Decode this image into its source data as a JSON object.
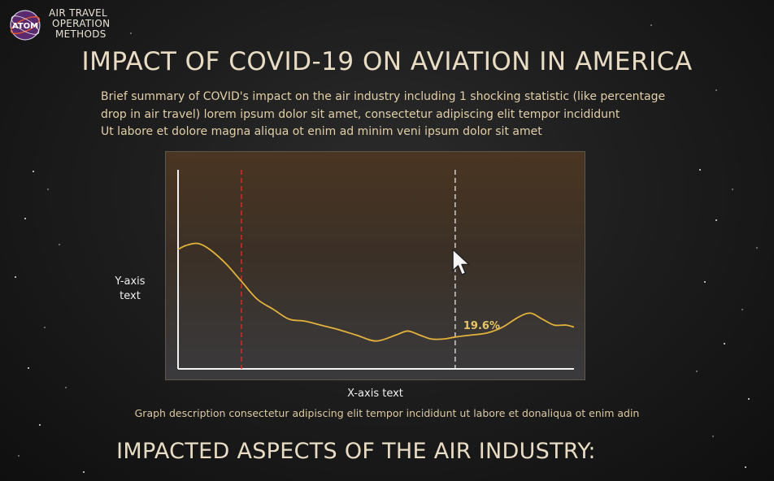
{
  "logo": {
    "badge_text": "ATOM",
    "lines": [
      "AIR TRAVEL",
      "OPERATION",
      "METHODS"
    ]
  },
  "page": {
    "title": "IMPACT OF COVID-19 ON AVIATION IN AMERICA",
    "summary_lines": [
      "Brief summary of COVID's impact on the air industry including 1 shocking statistic (like percentage",
      "drop in air travel) lorem ipsum dolor sit amet, consectetur adipiscing elit tempor incididunt",
      "Ut labore et dolore magna aliqua ot enim ad minim veni ipsum dolor sit amet"
    ],
    "section_title": "IMPACTED ASPECTS OF THE AIR INDUSTRY:"
  },
  "chart_data": {
    "type": "line",
    "title": "",
    "xlabel": "X-axis text",
    "ylabel_lines": [
      "Y-axis",
      "text"
    ],
    "description": "Graph description consectetur adipiscing elit tempor incididunt ut labore et donaliqua ot enim adin",
    "xlim": [
      0,
      100
    ],
    "ylim": [
      0,
      100
    ],
    "grid": false,
    "series": [
      {
        "color": "#e3b23c",
        "x": [
          0,
          2,
          5,
          8,
          12,
          16,
          20,
          24,
          28,
          32,
          36,
          40,
          45,
          50,
          55,
          58,
          61,
          64,
          67,
          70,
          74,
          78,
          82,
          86,
          89,
          92,
          95,
          98,
          100
        ],
        "y": [
          60,
          62,
          63,
          60,
          53,
          44,
          35,
          30,
          25,
          24,
          22,
          20,
          17,
          14,
          17,
          19,
          17,
          15,
          15,
          16,
          17,
          18,
          21,
          26,
          28,
          25,
          22,
          22,
          21
        ]
      }
    ],
    "markers": [
      {
        "x": 16,
        "color": "#d8322e",
        "style": "dashed"
      },
      {
        "x": 70,
        "color": "#e8e8e8",
        "style": "dashed"
      }
    ],
    "annotation": {
      "text": "19.6%",
      "x": 70,
      "y": 16
    }
  },
  "colors": {
    "accent": "#e3b23c",
    "marker_red": "#d8322e",
    "title": "#e8dcc4"
  },
  "icons": {
    "logo": "atom-orbit-logo",
    "pointer": "mouse-pointer-icon"
  }
}
